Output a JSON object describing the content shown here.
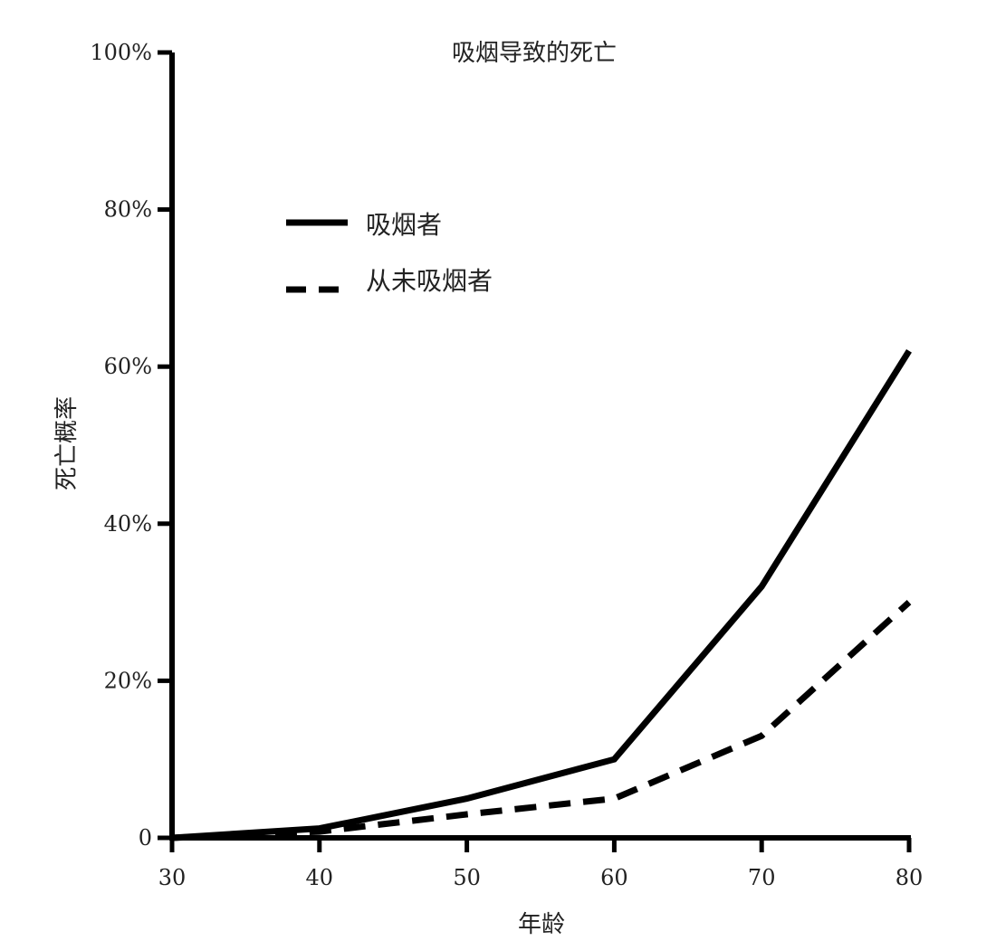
{
  "chart_data": {
    "type": "line",
    "title": "吸烟导致的死亡",
    "xlabel": "年龄",
    "ylabel": "死亡概率",
    "x": [
      30,
      40,
      50,
      60,
      70,
      80
    ],
    "xlim": [
      30,
      80
    ],
    "ylim": [
      0,
      100
    ],
    "x_ticks": [
      "30",
      "40",
      "50",
      "60",
      "70",
      "80"
    ],
    "y_ticks": [
      {
        "value": 0,
        "label": "0"
      },
      {
        "value": 20,
        "label": "20%"
      },
      {
        "value": 40,
        "label": "40%"
      },
      {
        "value": 60,
        "label": "60%"
      },
      {
        "value": 80,
        "label": "80%"
      },
      {
        "value": 100,
        "label": "100%"
      }
    ],
    "grid": false,
    "legend_position": "top-left",
    "series": [
      {
        "name": "吸烟者",
        "style": "solid",
        "color": "#000000",
        "values": [
          0,
          1.2,
          5,
          10,
          32,
          62
        ]
      },
      {
        "name": "从未吸烟者",
        "style": "dashed",
        "color": "#000000",
        "values": [
          0,
          0.8,
          3,
          5,
          13,
          30
        ]
      }
    ]
  }
}
